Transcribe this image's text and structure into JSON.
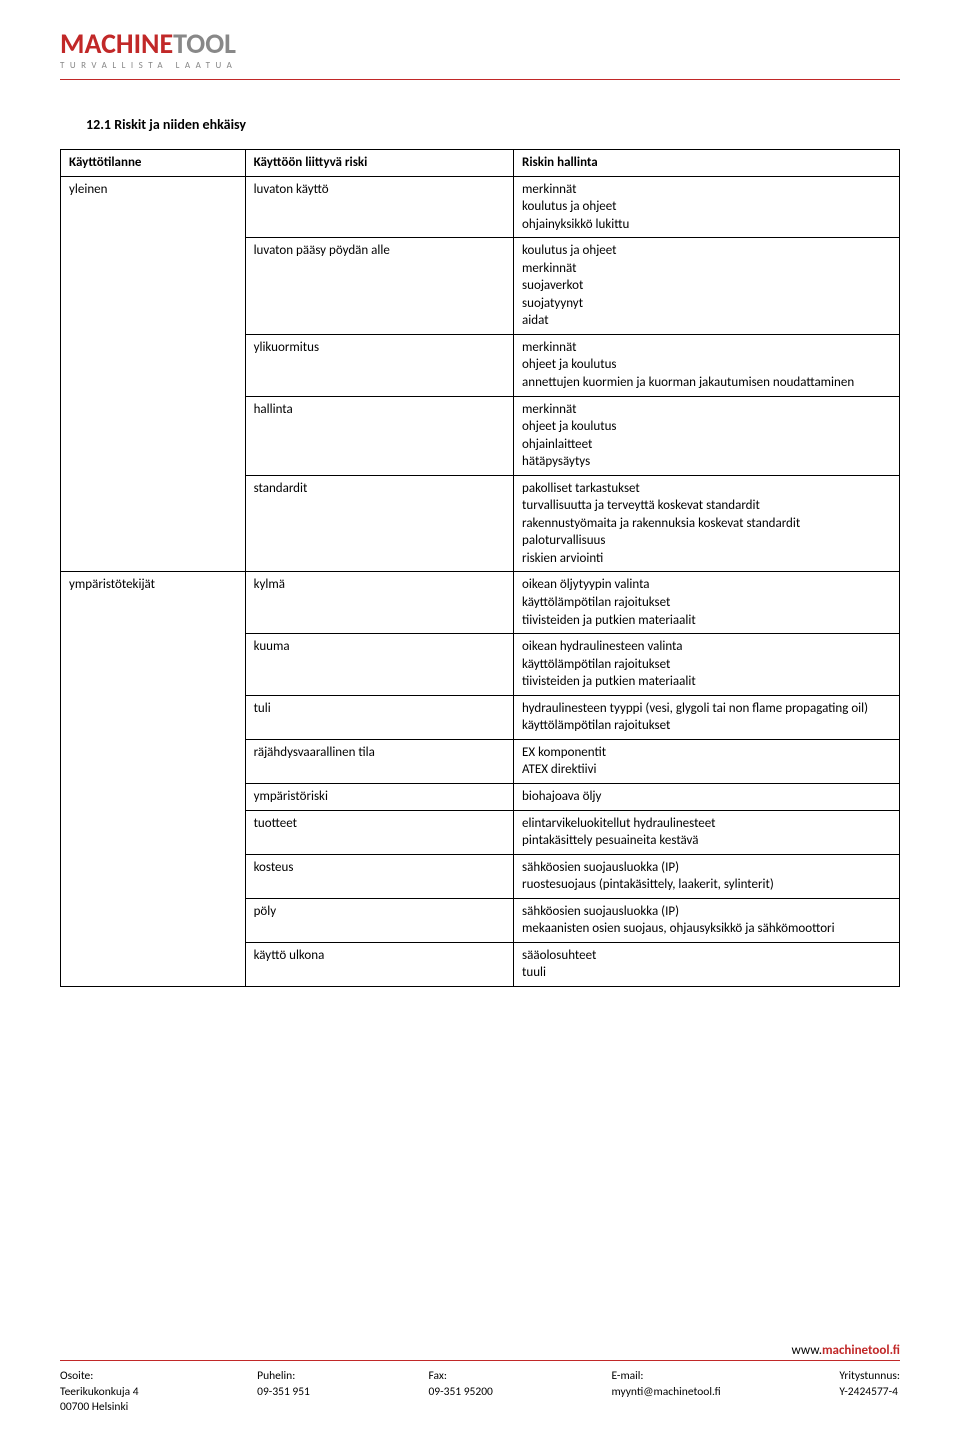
{
  "logo": {
    "part1": "MACHINE",
    "part2": "TOOL",
    "tagline": "TURVALLISTA LAATUA",
    "part1_color": "#c12828",
    "part2_color": "#888888",
    "tagline_color": "#888888"
  },
  "heading": "12.1    Riskit ja niiden ehkäisy",
  "table": {
    "headers": {
      "situation": "Käyttötilanne",
      "risk": "Käyttöön liittyvä riski",
      "control": "Riskin hallinta"
    },
    "groups": [
      {
        "situation": "yleinen",
        "rows": [
          {
            "risk": "luvaton käyttö",
            "control": "merkinnät\nkoulutus ja ohjeet\nohjainyksikkö lukittu"
          },
          {
            "risk": "luvaton pääsy pöydän alle",
            "control": "koulutus ja ohjeet\nmerkinnät\nsuojaverkot\nsuojatyynyt\naidat"
          },
          {
            "risk": "ylikuormitus",
            "control": "merkinnät\nohjeet ja koulutus\nannettujen kuormien ja kuorman jakautumisen noudattaminen"
          },
          {
            "risk": "hallinta",
            "control": "merkinnät\nohjeet ja koulutus\nohjainlaitteet\nhätäpysäytys"
          },
          {
            "risk": "standardit",
            "control": "pakolliset tarkastukset\nturvallisuutta ja terveyttä koskevat standardit\nrakennustyömaita ja rakennuksia koskevat standardit\npaloturvallisuus\nriskien arviointi"
          }
        ]
      },
      {
        "situation": "ympäristötekijät",
        "rows": [
          {
            "risk": "kylmä",
            "control": "oikean öljytyypin valinta\nkäyttölämpötilan rajoitukset\ntiivisteiden ja putkien materiaalit"
          },
          {
            "risk": "kuuma",
            "control": "oikean hydraulinesteen valinta\nkäyttölämpötilan rajoitukset\ntiivisteiden ja putkien materiaalit"
          },
          {
            "risk": "tuli",
            "control": "hydraulinesteen tyyppi (vesi, glygoli tai non flame propagating oil)\nkäyttölämpötilan rajoitukset"
          },
          {
            "risk": "räjähdysvaarallinen tila",
            "control": "EX komponentit\nATEX direktiivi"
          },
          {
            "risk": "ympäristöriski",
            "control": "biohajoava öljy"
          },
          {
            "risk": "tuotteet",
            "control": "elintarvikeluokitellut hydraulinesteet\npintakäsittely pesuaineita kestävä"
          },
          {
            "risk": "kosteus",
            "control": "sähköosien suojausluokka (IP)\nruostesuojaus (pintakäsittely, laakerit, sylinterit)"
          },
          {
            "risk": "pöly",
            "control": "sähköosien suojausluokka (IP)\nmekaanisten osien suojaus, ohjausyksikkö ja sähkömoottori"
          },
          {
            "risk": "käyttö ulkona",
            "control": "sääolosuhteet\ntuuli"
          }
        ]
      }
    ]
  },
  "footer": {
    "website_prefix": "www.",
    "website_domain": "machinetool.fi",
    "columns": [
      {
        "label": "Osoite:",
        "line1": "Teerikukonkuja 4",
        "line2": "00700 Helsinki"
      },
      {
        "label": "Puhelin:",
        "line1": "09-351 951",
        "line2": ""
      },
      {
        "label": "Fax:",
        "line1": "09-351 95200",
        "line2": ""
      },
      {
        "label": "E-mail:",
        "line1": "myynti@machinetool.fi",
        "line2": ""
      },
      {
        "label": "Yritystunnus:",
        "line1": "Y-2424577-4",
        "line2": ""
      }
    ]
  },
  "colors": {
    "accent_red": "#c12828",
    "gray": "#888888",
    "text": "#000000",
    "border": "#000000",
    "background": "#ffffff"
  }
}
